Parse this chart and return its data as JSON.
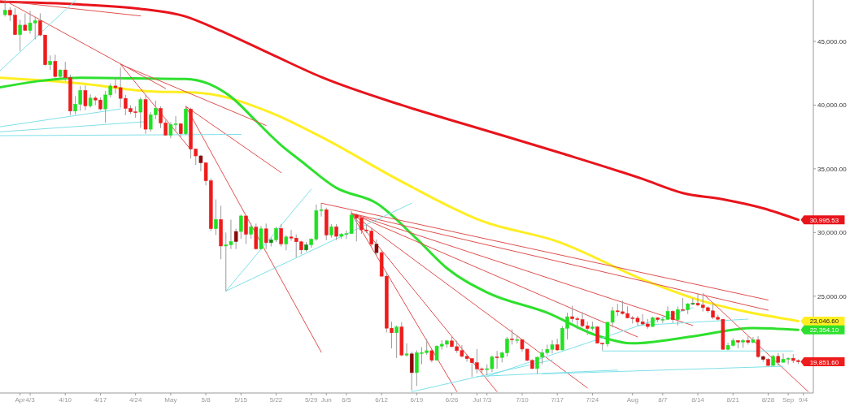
{
  "chart_data": {
    "type": "candlestick",
    "x": [
      "--03-29",
      "--03-30",
      "--03-31",
      "--04-01",
      "--04-02",
      "--04-03",
      "--04-04",
      "--04-05",
      "--04-06",
      "--04-07",
      "--04-08",
      "--04-09",
      "--04-10",
      "--04-11",
      "--04-12",
      "--04-13",
      "--04-14",
      "--04-15",
      "--04-16",
      "--04-17",
      "--04-18",
      "--04-19",
      "--04-20",
      "--04-21",
      "--04-22",
      "--04-23",
      "--04-24",
      "--04-25",
      "--04-26",
      "--04-27",
      "--04-28",
      "--04-29",
      "--04-30",
      "--05-01",
      "--05-02",
      "--05-03",
      "--05-04",
      "--05-05",
      "--05-06",
      "--05-07",
      "--05-08",
      "--05-09",
      "--05-10",
      "--05-11",
      "--05-12",
      "--05-13",
      "--05-14",
      "--05-15",
      "--05-16",
      "--05-17",
      "--05-18",
      "--05-19",
      "--05-20",
      "--05-21",
      "--05-22",
      "--05-23",
      "--05-24",
      "--05-25",
      "--05-26",
      "--05-27",
      "--05-28",
      "--05-29",
      "--05-30",
      "--05-31",
      "--06-01",
      "--06-02",
      "--06-03",
      "--06-04",
      "--06-05",
      "--06-06",
      "--06-07",
      "--06-08",
      "--06-09",
      "--06-10",
      "--06-11",
      "--06-12",
      "--06-13",
      "--06-14",
      "--06-15",
      "--06-16",
      "--06-17",
      "--06-18",
      "--06-19",
      "--06-20",
      "--06-21",
      "--06-22",
      "--06-23",
      "--06-24",
      "--06-25",
      "--06-26",
      "--06-27",
      "--06-28",
      "--06-29",
      "--06-30",
      "--07-01",
      "--07-02",
      "--07-03",
      "--07-04",
      "--07-05",
      "--07-06",
      "--07-07",
      "--07-08",
      "--07-09",
      "--07-10",
      "--07-11",
      "--07-12",
      "--07-13",
      "--07-14",
      "--07-15",
      "--07-16",
      "--07-17",
      "--07-18",
      "--07-19",
      "--07-20",
      "--07-21",
      "--07-22",
      "--07-23",
      "--07-24",
      "--07-25",
      "--07-26",
      "--07-27",
      "--07-28",
      "--07-29",
      "--07-30",
      "--07-31",
      "--08-01",
      "--08-02",
      "--08-03",
      "--08-04",
      "--08-05",
      "--08-06",
      "--08-07",
      "--08-08",
      "--08-09",
      "--08-10",
      "--08-11",
      "--08-12",
      "--08-13",
      "--08-14",
      "--08-15",
      "--08-16",
      "--08-17",
      "--08-18",
      "--08-19",
      "--08-20",
      "--08-21",
      "--08-22",
      "--08-23",
      "--08-24",
      "--08-25",
      "--08-26",
      "--08-27",
      "--08-28",
      "--08-29",
      "--08-30",
      "--08-31",
      "--09-01",
      "--09-02",
      "--09-03"
    ],
    "ohlc": [
      [
        47100,
        48100,
        46950,
        47450
      ],
      [
        47450,
        47700,
        46600,
        47060
      ],
      [
        47060,
        47600,
        45500,
        45530
      ],
      [
        45530,
        46700,
        44250,
        46280
      ],
      [
        46280,
        47200,
        45850,
        45860
      ],
      [
        45860,
        47400,
        45600,
        46450
      ],
      [
        46450,
        46900,
        45150,
        46620
      ],
      [
        46620,
        47200,
        45400,
        45500
      ],
      [
        45500,
        45500,
        43100,
        43170
      ],
      [
        43170,
        43900,
        42750,
        43440
      ],
      [
        43440,
        43950,
        42150,
        42250
      ],
      [
        42250,
        42800,
        42150,
        42760
      ],
      [
        42760,
        43400,
        41900,
        42160
      ],
      [
        42160,
        42400,
        39200,
        39530
      ],
      [
        39530,
        40700,
        39250,
        40070
      ],
      [
        40070,
        41500,
        39550,
        41150
      ],
      [
        41150,
        41550,
        39600,
        39940
      ],
      [
        39940,
        40850,
        39800,
        40550
      ],
      [
        40550,
        40700,
        40000,
        40400
      ],
      [
        40400,
        40600,
        39600,
        39700
      ],
      [
        39700,
        41100,
        38600,
        40800
      ],
      [
        40800,
        41700,
        40600,
        41500
      ],
      [
        41500,
        42200,
        40900,
        41370
      ],
      [
        41370,
        42950,
        39800,
        40530
      ],
      [
        40530,
        40800,
        39200,
        39740
      ],
      [
        39740,
        39980,
        39300,
        39470
      ],
      [
        39470,
        39900,
        39000,
        39450
      ],
      [
        39450,
        40600,
        38200,
        40430
      ],
      [
        40430,
        40780,
        37750,
        38110
      ],
      [
        38110,
        39450,
        37900,
        39240
      ],
      [
        39240,
        40350,
        38900,
        39740
      ],
      [
        39740,
        39900,
        38200,
        38600
      ],
      [
        38600,
        38800,
        37600,
        37640
      ],
      [
        37640,
        38650,
        37400,
        38470
      ],
      [
        38470,
        39150,
        38000,
        38530
      ],
      [
        38530,
        38600,
        37500,
        37750
      ],
      [
        37750,
        39900,
        37650,
        39690
      ],
      [
        39690,
        39800,
        35800,
        36550
      ],
      [
        36550,
        36600,
        35300,
        36010
      ],
      [
        36010,
        36100,
        34800,
        35470
      ],
      [
        35470,
        35500,
        33700,
        34060
      ],
      [
        34060,
        34250,
        30100,
        30300
      ],
      [
        30300,
        32600,
        29800,
        31020
      ],
      [
        31020,
        32100,
        27900,
        28940
      ],
      [
        28940,
        30000,
        25400,
        29030
      ],
      [
        29030,
        31000,
        28700,
        29290
      ],
      [
        29290,
        30300,
        28700,
        30080
      ],
      [
        30080,
        31400,
        29500,
        31300
      ],
      [
        31300,
        31300,
        29100,
        29860
      ],
      [
        29860,
        30700,
        29500,
        30420
      ],
      [
        30420,
        30700,
        28650,
        28720
      ],
      [
        28720,
        30500,
        28650,
        30290
      ],
      [
        30290,
        30700,
        28700,
        29200
      ],
      [
        29200,
        29600,
        28900,
        29430
      ],
      [
        29430,
        30450,
        29250,
        30320
      ],
      [
        30320,
        30650,
        28900,
        29100
      ],
      [
        29100,
        29800,
        28600,
        29650
      ],
      [
        29650,
        30200,
        29350,
        29560
      ],
      [
        29560,
        29850,
        28050,
        29270
      ],
      [
        29270,
        29350,
        28300,
        28630
      ],
      [
        28630,
        29250,
        28500,
        29030
      ],
      [
        29030,
        29550,
        28800,
        29470
      ],
      [
        29470,
        32200,
        29350,
        31720
      ],
      [
        31720,
        32300,
        31250,
        31790
      ],
      [
        31790,
        31950,
        29400,
        29800
      ],
      [
        29800,
        30650,
        29600,
        30450
      ],
      [
        30450,
        30650,
        29400,
        29700
      ],
      [
        29700,
        29950,
        29500,
        29860
      ],
      [
        29860,
        30150,
        29500,
        29910
      ],
      [
        29910,
        31700,
        29900,
        31370
      ],
      [
        31370,
        31500,
        29300,
        31130
      ],
      [
        31130,
        31350,
        29900,
        30200
      ],
      [
        30200,
        30650,
        29950,
        30110
      ],
      [
        30110,
        30350,
        28900,
        29080
      ],
      [
        29080,
        29450,
        28200,
        28420
      ],
      [
        28420,
        28600,
        26550,
        26570
      ],
      [
        26570,
        26850,
        22150,
        22490
      ],
      [
        22490,
        23000,
        20900,
        22130
      ],
      [
        22130,
        22700,
        20150,
        22580
      ],
      [
        22580,
        22950,
        20300,
        20380
      ],
      [
        20380,
        21300,
        20250,
        20470
      ],
      [
        20470,
        20650,
        17600,
        19000
      ],
      [
        19000,
        20750,
        17950,
        20560
      ],
      [
        20560,
        21000,
        19650,
        20570
      ],
      [
        20570,
        21650,
        20400,
        20720
      ],
      [
        20720,
        20850,
        19800,
        19970
      ],
      [
        19970,
        21150,
        19950,
        21080
      ],
      [
        21080,
        21550,
        20800,
        21230
      ],
      [
        21230,
        21550,
        20950,
        21490
      ],
      [
        21490,
        21850,
        21000,
        21040
      ],
      [
        21040,
        21500,
        20550,
        20730
      ],
      [
        20730,
        21150,
        20200,
        20280
      ],
      [
        20280,
        20400,
        19850,
        20100
      ],
      [
        20100,
        20150,
        18650,
        19780
      ],
      [
        19780,
        20850,
        18950,
        19300
      ],
      [
        19300,
        19400,
        18950,
        19240
      ],
      [
        19240,
        19650,
        18800,
        19310
      ],
      [
        19310,
        20350,
        19050,
        20230
      ],
      [
        20230,
        20700,
        19300,
        20190
      ],
      [
        20190,
        20650,
        19800,
        20550
      ],
      [
        20550,
        21800,
        20250,
        21640
      ],
      [
        21640,
        22400,
        21200,
        21580
      ],
      [
        21580,
        21950,
        21300,
        21590
      ],
      [
        21590,
        21600,
        20650,
        20850
      ],
      [
        20850,
        20850,
        19900,
        19960
      ],
      [
        19960,
        20050,
        19250,
        19320
      ],
      [
        19320,
        20250,
        18900,
        20210
      ],
      [
        20210,
        20850,
        19650,
        20570
      ],
      [
        20570,
        21200,
        20400,
        20830
      ],
      [
        20830,
        21550,
        20500,
        21190
      ],
      [
        21190,
        21650,
        20700,
        20780
      ],
      [
        20780,
        22650,
        20750,
        22480
      ],
      [
        22480,
        23700,
        21600,
        23390
      ],
      [
        23390,
        24250,
        22950,
        23230
      ],
      [
        23230,
        23400,
        22400,
        23160
      ],
      [
        23160,
        23750,
        22550,
        22680
      ],
      [
        22680,
        23000,
        21950,
        22460
      ],
      [
        22460,
        23000,
        22300,
        22580
      ],
      [
        22580,
        22650,
        21300,
        21310
      ],
      [
        21310,
        21350,
        20750,
        21250
      ],
      [
        21250,
        23000,
        21050,
        22950
      ],
      [
        22950,
        24150,
        22550,
        23850
      ],
      [
        23850,
        24400,
        23450,
        23780
      ],
      [
        23780,
        24650,
        23550,
        23640
      ],
      [
        23640,
        24200,
        23250,
        23300
      ],
      [
        23300,
        23450,
        22850,
        23270
      ],
      [
        23270,
        23450,
        22700,
        22990
      ],
      [
        22990,
        23600,
        22750,
        22820
      ],
      [
        22820,
        23200,
        22450,
        22620
      ],
      [
        22620,
        23400,
        22600,
        23310
      ],
      [
        23310,
        23350,
        22950,
        23170
      ],
      [
        23170,
        23350,
        22900,
        23180
      ],
      [
        23180,
        24200,
        23150,
        23810
      ],
      [
        23810,
        23900,
        22900,
        23160
      ],
      [
        23160,
        24200,
        22700,
        23950
      ],
      [
        23950,
        24850,
        23900,
        23940
      ],
      [
        23940,
        24450,
        23600,
        24400
      ],
      [
        24400,
        24850,
        24300,
        24440
      ],
      [
        24440,
        25200,
        24200,
        24300
      ],
      [
        24300,
        25100,
        23800,
        24100
      ],
      [
        24100,
        24200,
        23700,
        23850
      ],
      [
        23850,
        24400,
        23200,
        23340
      ],
      [
        23340,
        23550,
        23100,
        23190
      ],
      [
        23190,
        23200,
        20800,
        20830
      ],
      [
        20830,
        21350,
        20750,
        21140
      ],
      [
        21140,
        21700,
        21050,
        21520
      ],
      [
        21520,
        21550,
        20900,
        21400
      ],
      [
        21400,
        21650,
        20950,
        21530
      ],
      [
        21530,
        21900,
        21200,
        21370
      ],
      [
        21370,
        21800,
        21300,
        21570
      ],
      [
        21570,
        21850,
        20150,
        20260
      ],
      [
        20260,
        20350,
        19850,
        20040
      ],
      [
        20040,
        20150,
        19550,
        19560
      ],
      [
        19560,
        20400,
        19550,
        20280
      ],
      [
        20280,
        20550,
        19550,
        19810
      ],
      [
        19810,
        20500,
        19800,
        20050
      ],
      [
        20050,
        20200,
        19650,
        20130
      ],
      [
        20130,
        20450,
        19750,
        19950
      ],
      [
        19950,
        20050,
        19700,
        19851.6
      ]
    ],
    "colors": [
      "#22e022",
      "#ee1c1c",
      "#ee1c1c",
      "#22e022",
      "#ee1c1c",
      "#22e022",
      "#22e022",
      "#ee1c1c",
      "#ee1c1c",
      "#22e022",
      "#ee1c1c",
      "#22e022",
      "#ee1c1c",
      "#ee1c1c",
      "#22e022",
      "#22e022",
      "#ee1c1c",
      "#22e022",
      "#ee1c1c",
      "#ee1c1c",
      "#22e022",
      "#22e022",
      "#ee1c1c",
      "#ee1c1c",
      "#ee1c1c",
      "#ee1c1c",
      "#ee1c1c",
      "#22e022",
      "#ee1c1c",
      "#22e022",
      "#22e022",
      "#ee1c1c",
      "#ee1c1c",
      "#22e022",
      "#22e022",
      "#ee1c1c",
      "#22e022",
      "#ee1c1c",
      "#ee1c1c",
      "#8b0a0a",
      "#ee1c1c",
      "#ee1c1c",
      "#22e022",
      "#ee1c1c",
      "#22e022",
      "#22e022",
      "#8b0a0a",
      "#22e022",
      "#ee1c1c",
      "#22e022",
      "#ee1c1c",
      "#22e022",
      "#ee1c1c",
      "#0d8a0d",
      "#22e022",
      "#ee1c1c",
      "#22e022",
      "#ee1c1c",
      "#ee1c1c",
      "#ee1c1c",
      "#0d8a0d",
      "#22e022",
      "#22e022",
      "#22e022",
      "#ee1c1c",
      "#22e022",
      "#ee1c1c",
      "#22e022",
      "#22e022",
      "#22e022",
      "#ee1c1c",
      "#ee1c1c",
      "#ee1c1c",
      "#ee1c1c",
      "#8b0a0a",
      "#ee1c1c",
      "#ee1c1c",
      "#ee1c1c",
      "#22e022",
      "#ee1c1c",
      "#22e022",
      "#8b0a0a",
      "#22e022",
      "#22e022",
      "#22e022",
      "#ee1c1c",
      "#22e022",
      "#22e022",
      "#22e022",
      "#ee1c1c",
      "#ee1c1c",
      "#ee1c1c",
      "#ee1c1c",
      "#ee1c1c",
      "#ee1c1c",
      "#ee1c1c",
      "#22e022",
      "#22e022",
      "#ee1c1c",
      "#22e022",
      "#22e022",
      "#ee1c1c",
      "#22e022",
      "#ee1c1c",
      "#ee1c1c",
      "#ee1c1c",
      "#22e022",
      "#22e022",
      "#22e022",
      "#22e022",
      "#ee1c1c",
      "#22e022",
      "#22e022",
      "#ee1c1c",
      "#ee1c1c",
      "#ee1c1c",
      "#ee1c1c",
      "#22e022",
      "#ee1c1c",
      "#ee1c1c",
      "#22e022",
      "#22e022",
      "#ee1c1c",
      "#ee1c1c",
      "#ee1c1c",
      "#ee1c1c",
      "#ee1c1c",
      "#ee1c1c",
      "#ee1c1c",
      "#22e022",
      "#ee1c1c",
      "#22e022",
      "#22e022",
      "#ee1c1c",
      "#22e022",
      "#ee1c1c",
      "#22e022",
      "#0d8a0d",
      "#ee1c1c",
      "#ee1c1c",
      "#ee1c1c",
      "#ee1c1c",
      "#ee1c1c",
      "#ee1c1c",
      "#22e022",
      "#22e022",
      "#ee1c1c",
      "#22e022",
      "#ee1c1c",
      "#22e022",
      "#ee1c1c",
      "#8b0a0a",
      "#ee1c1c",
      "#22e022",
      "#ee1c1c",
      "#22e022",
      "#22e022",
      "#ee1c1c",
      "#ee1c1c"
    ],
    "series": [
      {
        "type": "line",
        "color": "#e8141c",
        "x": [
          "--03-28",
          "--04-13",
          "--04-24",
          "--05-04",
          "--05-10",
          "--05-21",
          "--05-31",
          "--06-16",
          "--07-02",
          "--07-18",
          "--08-03",
          "--08-11",
          "--08-19",
          "--08-27",
          "--09-03"
        ],
        "values": [
          48100,
          47900,
          47600,
          46950,
          46000,
          44000,
          42200,
          40000,
          38100,
          36200,
          34200,
          33100,
          32600,
          31900,
          30995.53
        ]
      },
      {
        "type": "line",
        "color": "#ffee22",
        "x": [
          "--03-28",
          "--04-13",
          "--04-26",
          "--05-07",
          "--05-21",
          "--05-31",
          "--06-16",
          "--07-02",
          "--07-17",
          "--08-04",
          "--08-13",
          "--09-03"
        ],
        "values": [
          42150,
          41700,
          41100,
          40950,
          39400,
          37500,
          34000,
          30900,
          29300,
          26150,
          24850,
          23046.6
        ]
      },
      {
        "type": "line",
        "color": "#2ee02e",
        "x": [
          "--03-28",
          "--04-05",
          "--04-13",
          "--04-24",
          "--05-04",
          "--05-09",
          "--05-13",
          "--05-18",
          "--05-23",
          "--05-27",
          "--06-03",
          "--06-11",
          "--06-19",
          "--06-25",
          "--07-03",
          "--07-15",
          "--07-25",
          "--08-01",
          "--08-13",
          "--08-25",
          "--09-03"
        ],
        "values": [
          41400,
          41900,
          42150,
          42100,
          42050,
          41600,
          40650,
          38750,
          36850,
          35600,
          33500,
          32300,
          29500,
          27200,
          25300,
          23700,
          21900,
          21300,
          21850,
          22500,
          22354.1
        ]
      },
      {
        "type": "line",
        "color": "#e05050",
        "x": [
          "--03-28",
          "--04-25"
        ],
        "values": [
          48200,
          47000
        ]
      },
      {
        "type": "line",
        "color": "#e05050",
        "x": [
          "--03-29",
          "--04-30"
        ],
        "values": [
          48200,
          41300
        ]
      },
      {
        "type": "line",
        "color": "#e05050",
        "x": [
          "--04-21",
          "--05-20"
        ],
        "values": [
          43200,
          38400
        ]
      },
      {
        "type": "line",
        "color": "#e05050",
        "x": [
          "--04-21",
          "--05-05"
        ],
        "values": [
          43200,
          36500
        ]
      },
      {
        "type": "line",
        "color": "#e05050",
        "x": [
          "--05-04",
          "--05-31"
        ],
        "values": [
          39900,
          20600
        ]
      },
      {
        "type": "line",
        "color": "#e05050",
        "x": [
          "--05-04",
          "--05-23"
        ],
        "values": [
          39900,
          34700
        ]
      },
      {
        "type": "line",
        "color": "#e05050",
        "x": [
          "--05-31",
          "--08-28"
        ],
        "values": [
          32300,
          24700
        ]
      },
      {
        "type": "line",
        "color": "#e05050",
        "x": [
          "--06-06",
          "--08-28"
        ],
        "values": [
          31500,
          23900
        ]
      },
      {
        "type": "line",
        "color": "#e05050",
        "x": [
          "--06-06",
          "--08-13"
        ],
        "values": [
          31500,
          22700
        ]
      },
      {
        "type": "line",
        "color": "#e05050",
        "x": [
          "--06-06",
          "--08-02"
        ],
        "values": [
          31500,
          21800
        ]
      },
      {
        "type": "line",
        "color": "#e05050",
        "x": [
          "--06-06",
          "--07-23"
        ],
        "values": [
          31500,
          17800
        ]
      },
      {
        "type": "line",
        "color": "#e05050",
        "x": [
          "--06-06",
          "--07-05"
        ],
        "values": [
          31500,
          17500
        ]
      },
      {
        "type": "line",
        "color": "#e05050",
        "x": [
          "--06-06",
          "--06-27"
        ],
        "values": [
          31500,
          17500
        ]
      },
      {
        "type": "line",
        "color": "#e05050",
        "x": [
          "--08-15",
          "--09-05"
        ],
        "values": [
          25200,
          17500
        ]
      },
      {
        "type": "line",
        "color": "#7ee0e8",
        "x": [
          "--03-28",
          "--04-12"
        ],
        "values": [
          42700,
          48200
        ]
      },
      {
        "type": "line",
        "color": "#7ee0e8",
        "x": [
          "--03-28",
          "--04-21"
        ],
        "values": [
          38300,
          39700
        ]
      },
      {
        "type": "line",
        "color": "#7ee0e8",
        "x": [
          "--03-28",
          "--04-26"
        ],
        "values": [
          37900,
          38700
        ]
      },
      {
        "type": "line",
        "color": "#7ee0e8",
        "x": [
          "--03-28",
          "--05-15"
        ],
        "values": [
          37600,
          37700
        ]
      },
      {
        "type": "line",
        "color": "#7ee0e8",
        "x": [
          "--05-12",
          "--05-29"
        ],
        "values": [
          25400,
          33400
        ]
      },
      {
        "type": "line",
        "color": "#7ee0e8",
        "x": [
          "--05-12",
          "--06-18"
        ],
        "values": [
          25400,
          32300
        ]
      },
      {
        "type": "line",
        "color": "#7ee0e8",
        "x": [
          "--06-18",
          "--07-16"
        ],
        "values": [
          17500,
          20000
        ]
      },
      {
        "type": "line",
        "color": "#7ee0e8",
        "x": [
          "--07-03",
          "--08-13"
        ],
        "values": [
          18700,
          24100
        ]
      },
      {
        "type": "line",
        "color": "#7ee0e8",
        "x": [
          "--07-01",
          "--07-29"
        ],
        "values": [
          18700,
          19200
        ]
      },
      {
        "type": "line",
        "color": "#7ee0e8",
        "x": [
          "--07-26",
          "--09-02"
        ],
        "values": [
          20700,
          20700
        ]
      },
      {
        "type": "line",
        "color": "#7ee0e8",
        "x": [
          "--08-02",
          "--08-24"
        ],
        "values": [
          22700,
          23200
        ]
      },
      {
        "type": "line",
        "color": "#7ee0e8",
        "x": [
          "--07-14",
          "--08-31"
        ],
        "values": [
          18900,
          19500
        ]
      }
    ],
    "xlim": [
      "--03-28",
      "--09-06"
    ],
    "xticks": [
      {
        "value": "--04-01",
        "label": "Apr"
      },
      {
        "value": "--04-03",
        "label": "4/3"
      },
      {
        "value": "--04-10",
        "label": "4/10"
      },
      {
        "value": "--04-17",
        "label": "4/17"
      },
      {
        "value": "--04-24",
        "label": "4/24"
      },
      {
        "value": "--05-01",
        "label": "May"
      },
      {
        "value": "--05-08",
        "label": "5/8"
      },
      {
        "value": "--05-15",
        "label": "5/15"
      },
      {
        "value": "--05-22",
        "label": "5/22"
      },
      {
        "value": "--05-29",
        "label": "5/29"
      },
      {
        "value": "--06-01",
        "label": "Jun"
      },
      {
        "value": "--06-05",
        "label": "6/5"
      },
      {
        "value": "--06-12",
        "label": "6/12"
      },
      {
        "value": "--06-19",
        "label": "6/19"
      },
      {
        "value": "--06-26",
        "label": "6/26"
      },
      {
        "value": "--07-01",
        "label": "Jul"
      },
      {
        "value": "--07-03",
        "label": "7/3"
      },
      {
        "value": "--07-10",
        "label": "7/10"
      },
      {
        "value": "--07-17",
        "label": "7/17"
      },
      {
        "value": "--07-24",
        "label": "7/24"
      },
      {
        "value": "--08-01",
        "label": "Aug"
      },
      {
        "value": "--08-07",
        "label": "8/7"
      },
      {
        "value": "--08-14",
        "label": "8/14"
      },
      {
        "value": "--08-21",
        "label": "8/21"
      },
      {
        "value": "--08-28",
        "label": "8/28"
      },
      {
        "value": "--09-01",
        "label": "Sep"
      },
      {
        "value": "--09-04",
        "label": "9/4"
      }
    ],
    "ylim": [
      17400,
      48250
    ],
    "yticks": [
      {
        "value": 25000,
        "label": "25,000.00"
      },
      {
        "value": 30000,
        "label": "30,000.00"
      },
      {
        "value": 35000,
        "label": "35,000.00"
      },
      {
        "value": 40000,
        "label": "40,000.00"
      },
      {
        "value": 45000,
        "label": "45,000.00"
      }
    ],
    "annotations": [
      {
        "text": "30,995.53",
        "x": "--09-03",
        "y": 30995.53
      },
      {
        "text": "23,046.60",
        "x": "--09-03",
        "y": 23046.6
      },
      {
        "text": "22,354.10",
        "x": "--09-03",
        "y": 22354.1
      },
      {
        "text": "19,851.60",
        "x": "--09-03",
        "y": 19851.6
      }
    ]
  }
}
